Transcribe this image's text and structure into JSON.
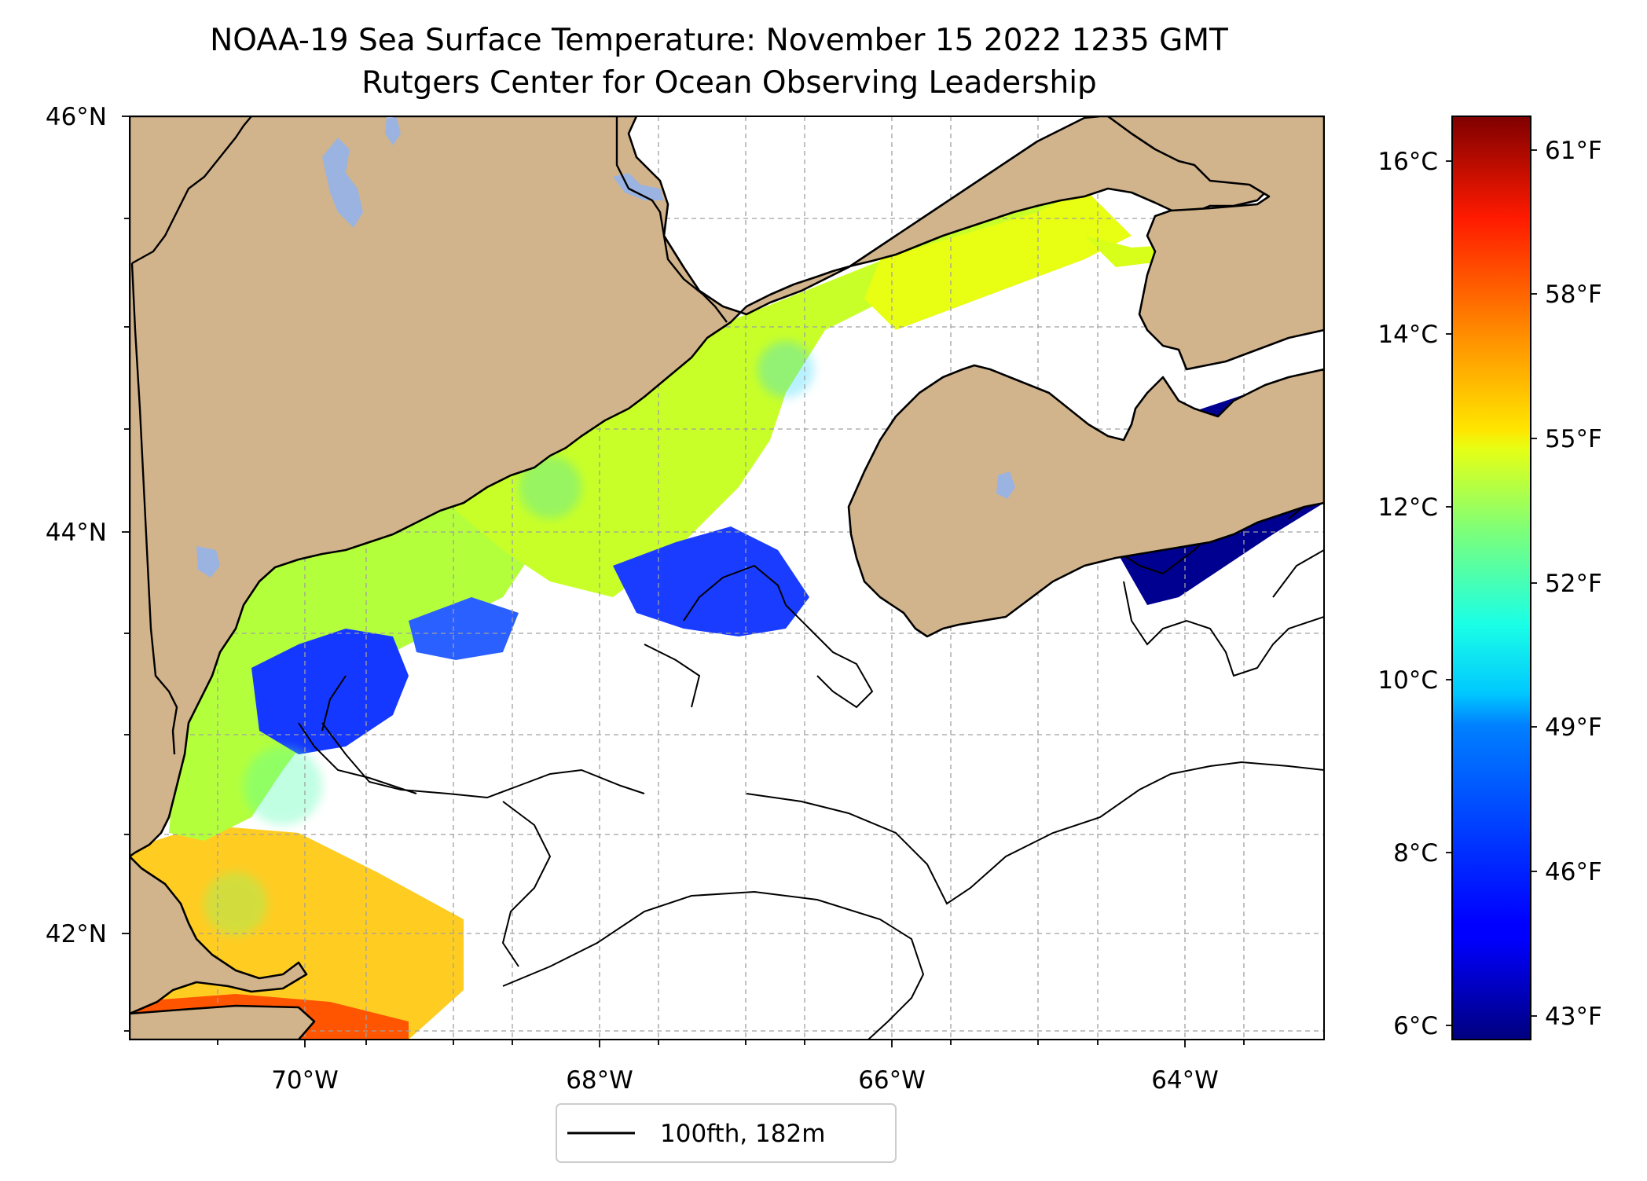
{
  "title": {
    "line1": "NOAA-19 Sea Surface Temperature: November 15 2022 1235 GMT",
    "line2": "Rutgers Center for Ocean Observing Leadership"
  },
  "map": {
    "lon_range": [
      -71.0,
      -62.8
    ],
    "lat_range": [
      41.5,
      46.0
    ],
    "land_color": "#d2b48c",
    "lake_color": "#9ab3e0",
    "no_data_color": "#ffffff",
    "grid": "dashed, on",
    "lat_ticks": [
      "46°N",
      "44°N",
      "42°N"
    ],
    "lon_ticks": [
      "70°W",
      "68°W",
      "66°W",
      "64°W"
    ],
    "sst_regions": {
      "coastal_maine_band": "yellow-green, about 52-54°F",
      "cape_cod_bay_and_south": "yellow-orange, about 55-58°F",
      "scotian_shelf_east": "dark blue, about 43°F",
      "patchy_central_gulf": "blue/cyan patches, about 45-49°F"
    }
  },
  "colorbar": {
    "colormap": "jet",
    "celsius_range": [
      5.8,
      16.5
    ],
    "celsius_ticks": [
      "16°C",
      "14°C",
      "12°C",
      "10°C",
      "8°C",
      "6°C"
    ],
    "fahrenheit_ticks": [
      "61°F",
      "58°F",
      "55°F",
      "52°F",
      "49°F",
      "46°F",
      "43°F"
    ]
  },
  "legend": {
    "label": "100fth, 182m",
    "line_color": "#000000"
  }
}
